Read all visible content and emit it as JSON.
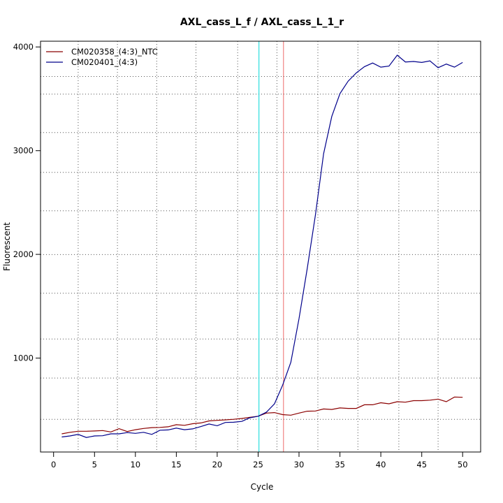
{
  "chart_data": {
    "type": "line",
    "title": "AXL_cass_L_f / AXL_cass_L_1_r",
    "xlabel": "Cycle",
    "ylabel": "Fluorescent",
    "xlim": [
      -1.6,
      52.2
    ],
    "ylim": [
      95,
      4055
    ],
    "x_ticks": [
      0,
      5,
      10,
      15,
      20,
      25,
      30,
      35,
      40,
      45,
      50
    ],
    "y_ticks": [
      1000,
      2000,
      3000,
      4000
    ],
    "grid": "dotted",
    "legend": "top-left",
    "vertical_grid_x": [
      3.0,
      7.8,
      12.6,
      17.4,
      22.5,
      27.3,
      32.3,
      37.2,
      42.2,
      47.0
    ],
    "horizontal_grid_y": [
      410,
      808,
      1185,
      1625,
      1998,
      2420,
      2790,
      3175,
      3545,
      3715
    ],
    "x": [
      1,
      2,
      3,
      4,
      5,
      6,
      7,
      8,
      9,
      10,
      11,
      12,
      13,
      14,
      15,
      16,
      17,
      18,
      19,
      20,
      21,
      22,
      23,
      24,
      25,
      26,
      27,
      28,
      29,
      30,
      31,
      32,
      33,
      34,
      35,
      36,
      37,
      38,
      39,
      40,
      41,
      42,
      43,
      44,
      45,
      46,
      47,
      48,
      49,
      50
    ],
    "series": [
      {
        "name": "CM020358_(4:3)_NTC",
        "color": "#8b0000",
        "values": [
          270,
          285,
          295,
          295,
          298,
          302,
          288,
          320,
          292,
          310,
          322,
          330,
          332,
          338,
          358,
          352,
          368,
          375,
          395,
          400,
          405,
          410,
          418,
          430,
          440,
          470,
          475,
          455,
          450,
          470,
          488,
          490,
          510,
          505,
          520,
          515,
          515,
          550,
          550,
          570,
          560,
          580,
          575,
          590,
          590,
          595,
          605,
          580,
          625,
          622
        ]
      },
      {
        "name": "CM020401_(4:3)",
        "color": "#00008b",
        "values": [
          240,
          250,
          265,
          235,
          250,
          252,
          270,
          270,
          282,
          275,
          285,
          265,
          305,
          308,
          325,
          310,
          318,
          340,
          365,
          348,
          380,
          382,
          390,
          425,
          440,
          478,
          560,
          740,
          960,
          1380,
          1860,
          2380,
          2970,
          3330,
          3550,
          3670,
          3750,
          3810,
          3845,
          3805,
          3815,
          3920,
          3855,
          3860,
          3850,
          3865,
          3800,
          3835,
          3805,
          3850
        ]
      }
    ],
    "vertical_markers": [
      {
        "x": 25.1,
        "color": "#00d7d7"
      },
      {
        "x": 28.1,
        "color": "#ee6b6b"
      }
    ]
  }
}
